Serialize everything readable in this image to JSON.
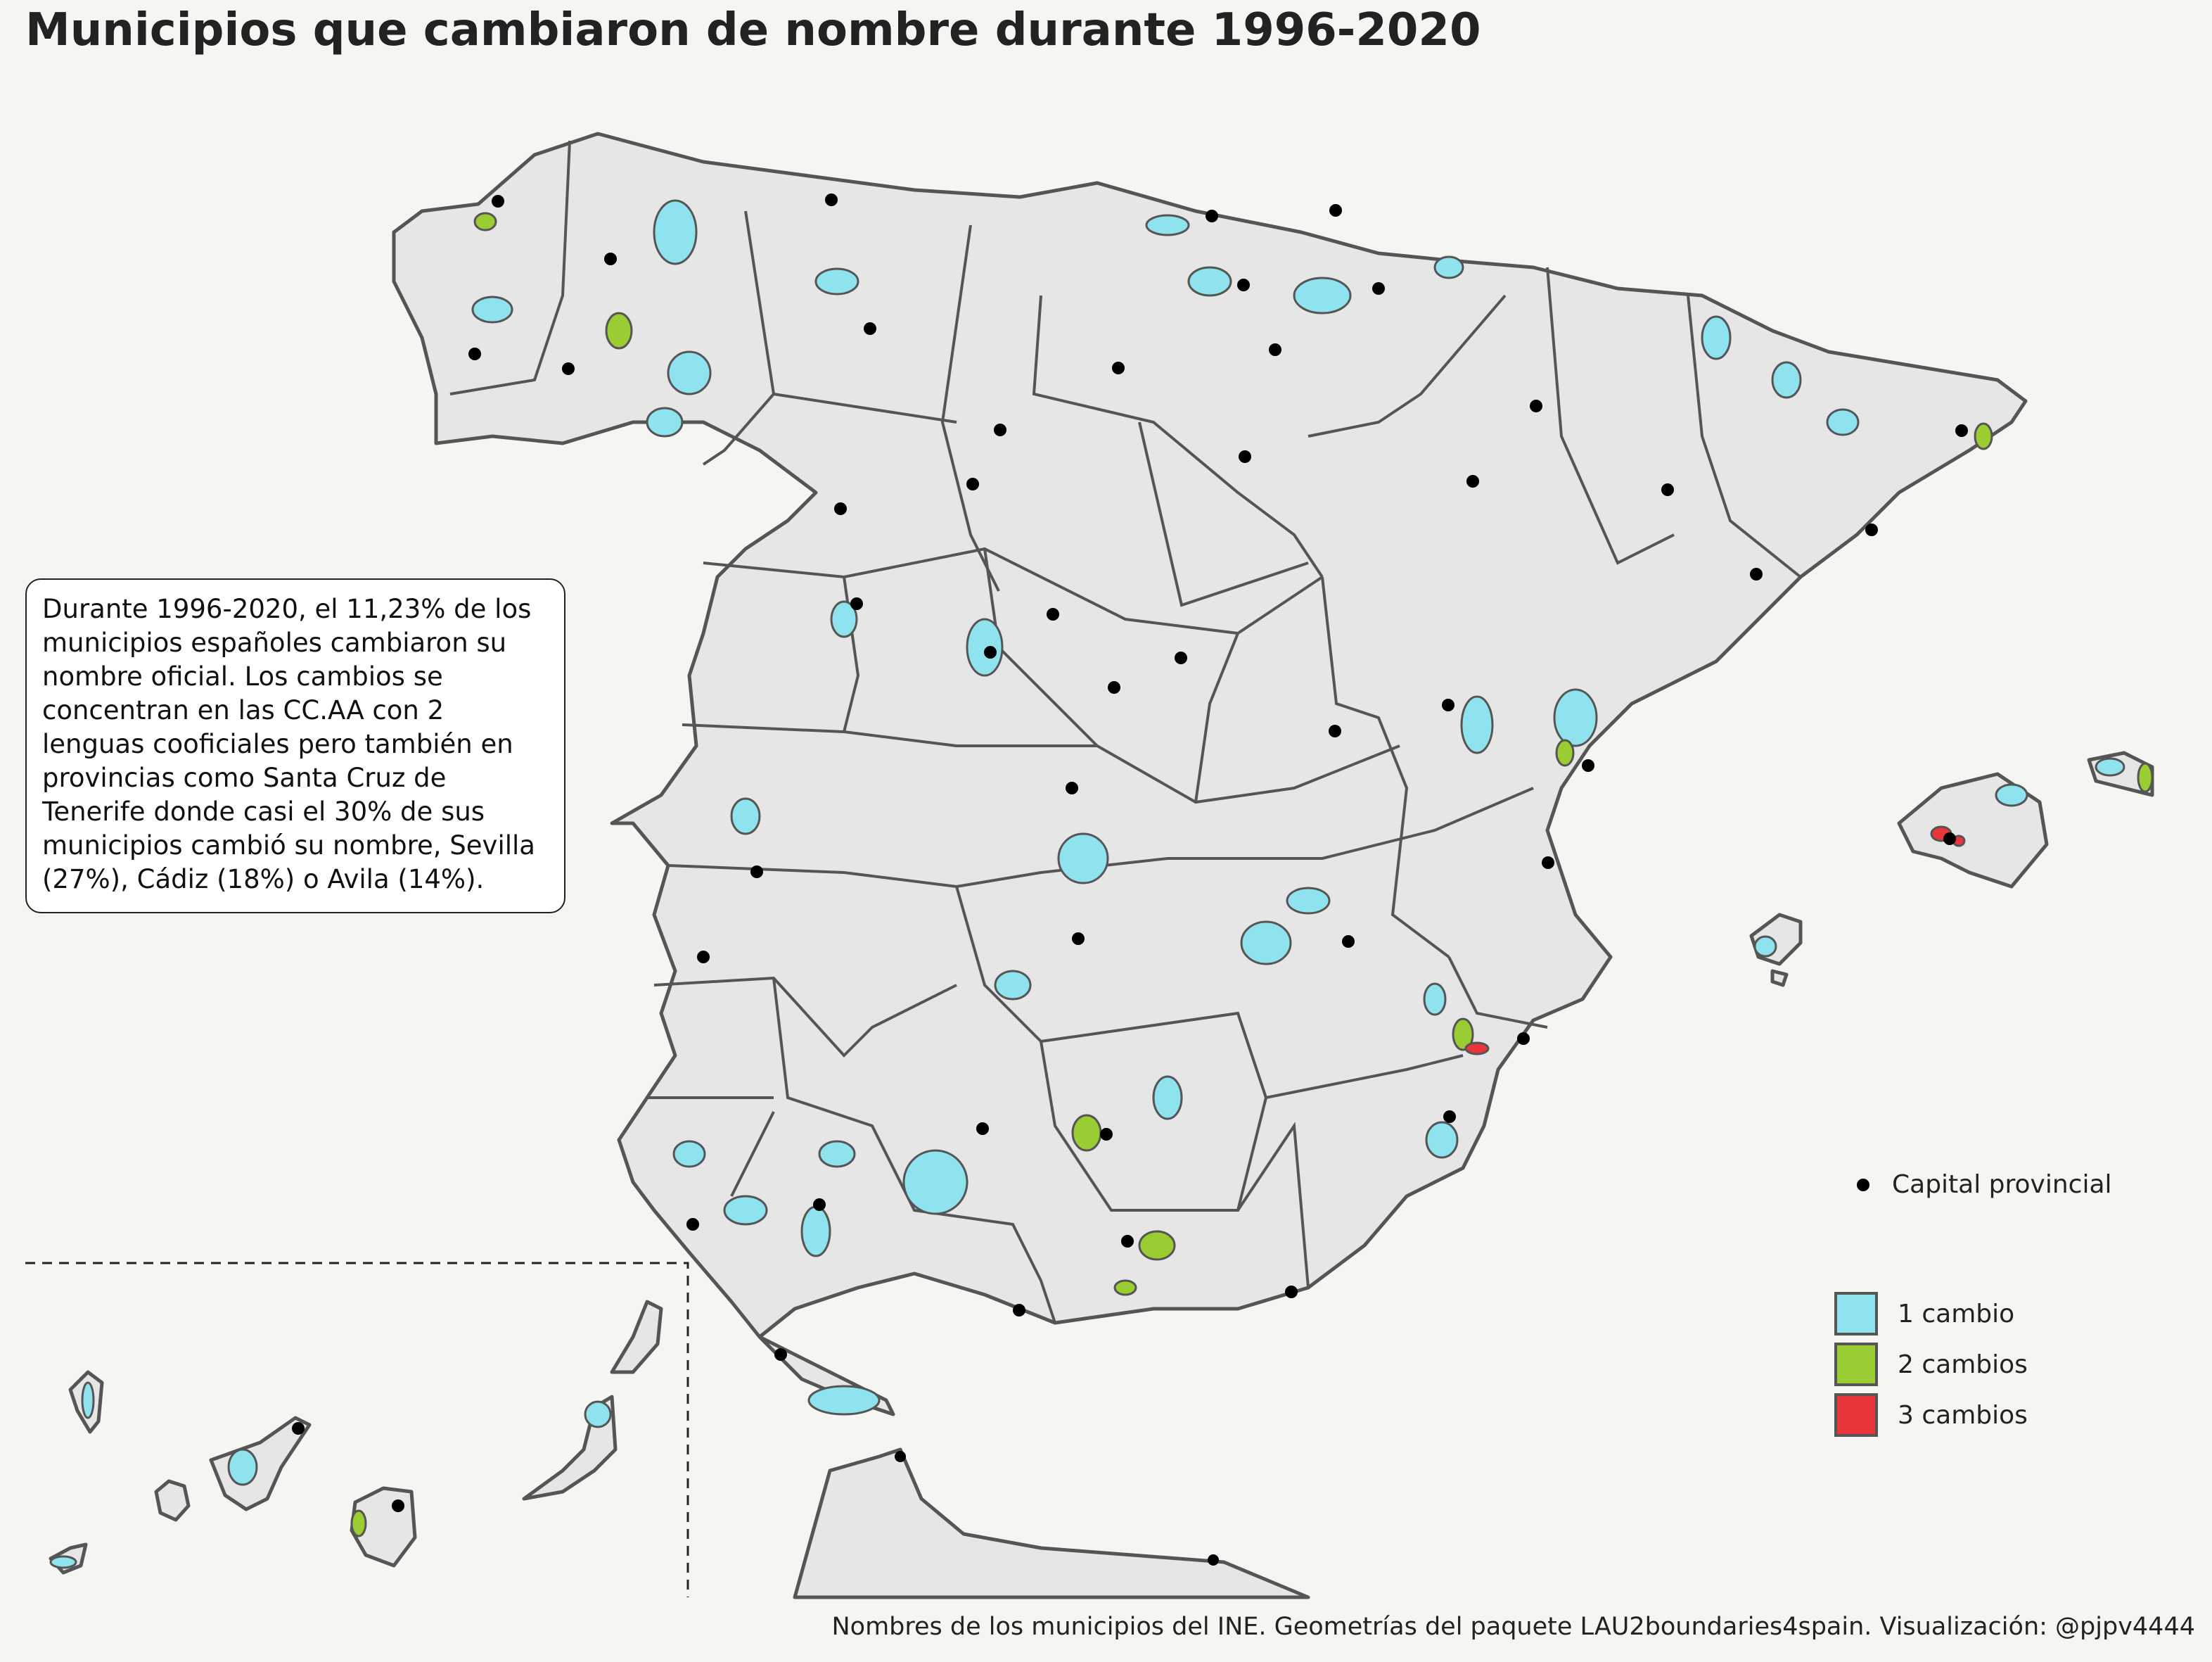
{
  "title": "Municipios que cambiaron de nombre durante 1996-2020",
  "annotation": "Durante 1996-2020, el 11,23% de los municipios españoles cambiaron su nombre oficial. Los cambios se concentran en las CC.AA con 2 lenguas cooficiales pero también en provincias como Santa Cruz de Tenerife donde casi el 30% de sus municipios cambió su nombre, Sevilla (27%), Cádiz (18%) o Avila (14%).",
  "legend": {
    "capital_label": "Capital provincial",
    "items": [
      {
        "label": "1 cambio",
        "color": "#8ee3ef"
      },
      {
        "label": "2 cambios",
        "color": "#9acd32"
      },
      {
        "label": "3 cambios",
        "color": "#e8363a"
      }
    ]
  },
  "caption": "Nombres de los municipios del INE. Geometrías del paquete LAU2boundaries4spain. Visualización: @pjpv4444",
  "colors": {
    "background": "#f5f5f1",
    "land": "#e6e6e7",
    "border": "#555555",
    "one_change": "#8ee3ef",
    "two_changes": "#9acd32",
    "three_changes": "#e8363a",
    "capital": "#000000"
  }
}
